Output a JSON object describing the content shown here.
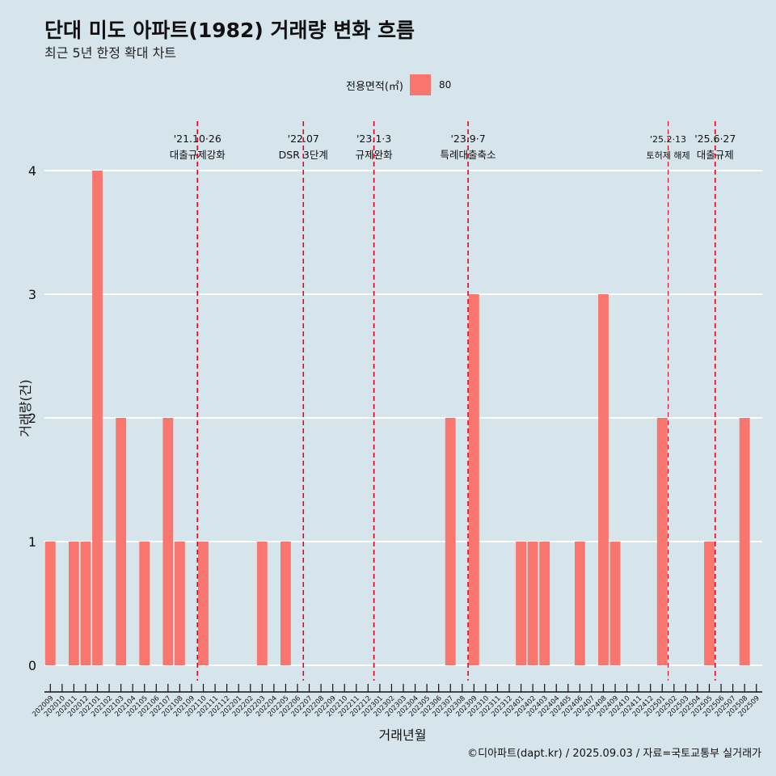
{
  "title": "단대 미도 아파트(1982) 거래량 변화 흐름",
  "subtitle": "최근 5년 한정 확대 차트",
  "legend": {
    "label": "전용면적(㎡)",
    "value": "80"
  },
  "caption": "©디아파트(dapt.kr) / 2025.09.03 / 자료=국토교통부 실거래가",
  "colors": {
    "bar": "#f8766d",
    "background": "#d6e4eb",
    "event_line": "#e8001c",
    "grid": "#ffffff"
  },
  "chart_data": {
    "type": "bar",
    "title": "단대 미도 아파트(1982) 거래량 변화 흐름",
    "xlabel": "거래년월",
    "ylabel": "거래량(건)",
    "ylim": [
      0,
      4
    ],
    "yticks": [
      0,
      1,
      2,
      3,
      4
    ],
    "categories": [
      "202009",
      "202010",
      "202011",
      "202012",
      "202101",
      "202102",
      "202103",
      "202104",
      "202105",
      "202106",
      "202107",
      "202108",
      "202109",
      "202110",
      "202111",
      "202112",
      "202201",
      "202202",
      "202203",
      "202204",
      "202205",
      "202206",
      "202207",
      "202208",
      "202209",
      "202210",
      "202211",
      "202212",
      "202301",
      "202302",
      "202303",
      "202304",
      "202305",
      "202306",
      "202307",
      "202308",
      "202309",
      "202310",
      "202311",
      "202312",
      "202401",
      "202402",
      "202403",
      "202404",
      "202405",
      "202406",
      "202407",
      "202408",
      "202409",
      "202410",
      "202411",
      "202412",
      "202501",
      "202502",
      "202503",
      "202504",
      "202505",
      "202506",
      "202507",
      "202508",
      "202509"
    ],
    "series": [
      {
        "name": "80",
        "values": [
          1,
          0,
          1,
          1,
          4,
          0,
          2,
          0,
          1,
          0,
          2,
          1,
          0,
          1,
          0,
          0,
          0,
          0,
          1,
          0,
          1,
          0,
          0,
          0,
          0,
          0,
          0,
          0,
          0,
          0,
          0,
          0,
          0,
          0,
          2,
          0,
          3,
          0,
          0,
          0,
          1,
          1,
          1,
          0,
          0,
          1,
          0,
          3,
          1,
          0,
          0,
          0,
          2,
          0,
          0,
          0,
          1,
          0,
          0,
          2,
          0
        ]
      }
    ],
    "events": [
      {
        "date": "'21.10·26",
        "label": "대출규제강화",
        "position": 13.0
      },
      {
        "date": "'22.07",
        "label": "DSR 3단계",
        "position": 22.0
      },
      {
        "date": "'23.1·3",
        "label": "규제완화",
        "position": 28.0
      },
      {
        "date": "'23.9·7",
        "label": "특례대출축소",
        "position": 36.0
      },
      {
        "date": "'25.2·13",
        "label": "토허제 해제",
        "position": 53.0,
        "small": true
      },
      {
        "date": "'25.6·27",
        "label": "대출규제",
        "position": 57.0
      }
    ]
  }
}
